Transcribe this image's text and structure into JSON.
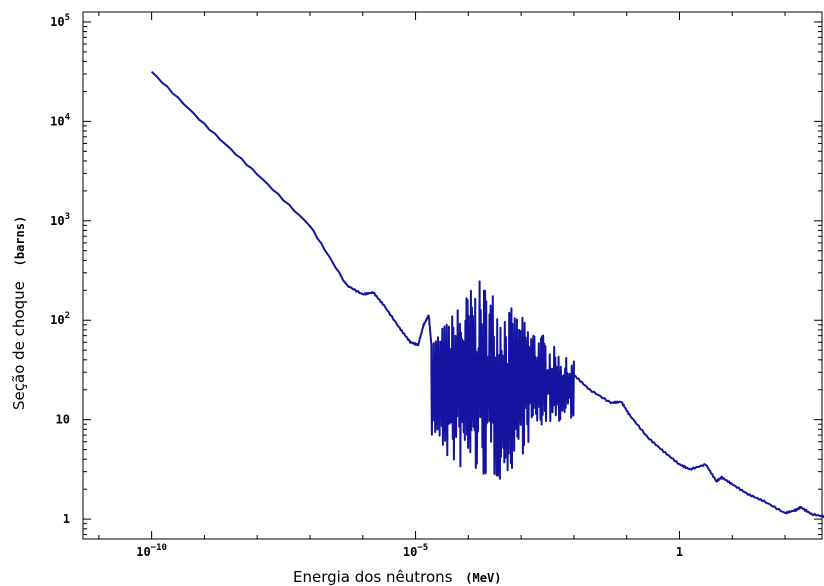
{
  "chart_data": {
    "type": "line",
    "title": "",
    "xlabel": "Energia dos nêutrons",
    "xunit": "(MeV)",
    "ylabel": "Seção de choque",
    "yunit": "(barns)",
    "xscale": "log",
    "yscale": "log",
    "xlim_log10": [
      -11.3,
      2.7
    ],
    "ylim_log10": [
      -0.2,
      5.1
    ],
    "grid": false,
    "line_color": "#1414a0",
    "xticks": [
      {
        "value": -10,
        "base": "10",
        "exp": "−10"
      },
      {
        "value": -5,
        "base": "10",
        "exp": "−5"
      },
      {
        "value": 0,
        "base": "1",
        "exp": ""
      }
    ],
    "yticks": [
      {
        "value": 5,
        "base": "10",
        "exp": "5"
      },
      {
        "value": 4,
        "base": "10",
        "exp": "4"
      },
      {
        "value": 3,
        "base": "10",
        "exp": "3"
      },
      {
        "value": 2,
        "base": "10",
        "exp": "2"
      },
      {
        "value": 1,
        "base": "10",
        "exp": ""
      },
      {
        "value": 0,
        "base": "1",
        "exp": ""
      }
    ],
    "series": [
      {
        "smooth_log10": [
          [
            -10.0,
            4.5
          ],
          [
            -9.0,
            3.97
          ],
          [
            -8.0,
            3.47
          ],
          [
            -7.0,
            2.95
          ],
          [
            -6.3,
            2.35
          ],
          [
            -6.0,
            2.26
          ],
          [
            -5.8,
            2.28
          ],
          [
            -5.6,
            2.15
          ],
          [
            -5.3,
            1.92
          ],
          [
            -5.1,
            1.78
          ],
          [
            -4.95,
            1.75
          ],
          [
            -4.85,
            1.95
          ],
          [
            -4.75,
            2.05
          ],
          [
            -4.7,
            1.75
          ]
        ],
        "resonance_range_log10": [
          -4.7,
          -2.0
        ],
        "tail_log10": [
          [
            -2.0,
            1.45
          ],
          [
            -1.7,
            1.3
          ],
          [
            -1.3,
            1.17
          ],
          [
            -1.1,
            1.18
          ],
          [
            -0.95,
            1.05
          ],
          [
            -0.6,
            0.82
          ],
          [
            -0.3,
            0.68
          ],
          [
            0.0,
            0.55
          ],
          [
            0.2,
            0.5
          ],
          [
            0.5,
            0.55
          ],
          [
            0.7,
            0.38
          ],
          [
            0.8,
            0.42
          ],
          [
            1.0,
            0.35
          ],
          [
            1.3,
            0.25
          ],
          [
            1.6,
            0.18
          ],
          [
            2.0,
            0.06
          ],
          [
            2.2,
            0.09
          ],
          [
            2.3,
            0.12
          ],
          [
            2.5,
            0.05
          ],
          [
            2.8,
            0.02
          ],
          [
            3.2,
            0.03
          ],
          [
            3.5,
            0.01
          ],
          [
            3.8,
            0.0
          ],
          [
            4.0,
            0.03
          ],
          [
            4.2,
            0.1
          ],
          [
            4.5,
            0.0
          ],
          [
            4.6,
            -0.02
          ],
          [
            4.8,
            0.25
          ],
          [
            5.0,
            0.24
          ],
          [
            5.2,
            0.31
          ],
          [
            5.5,
            0.3
          ]
        ]
      }
    ]
  }
}
